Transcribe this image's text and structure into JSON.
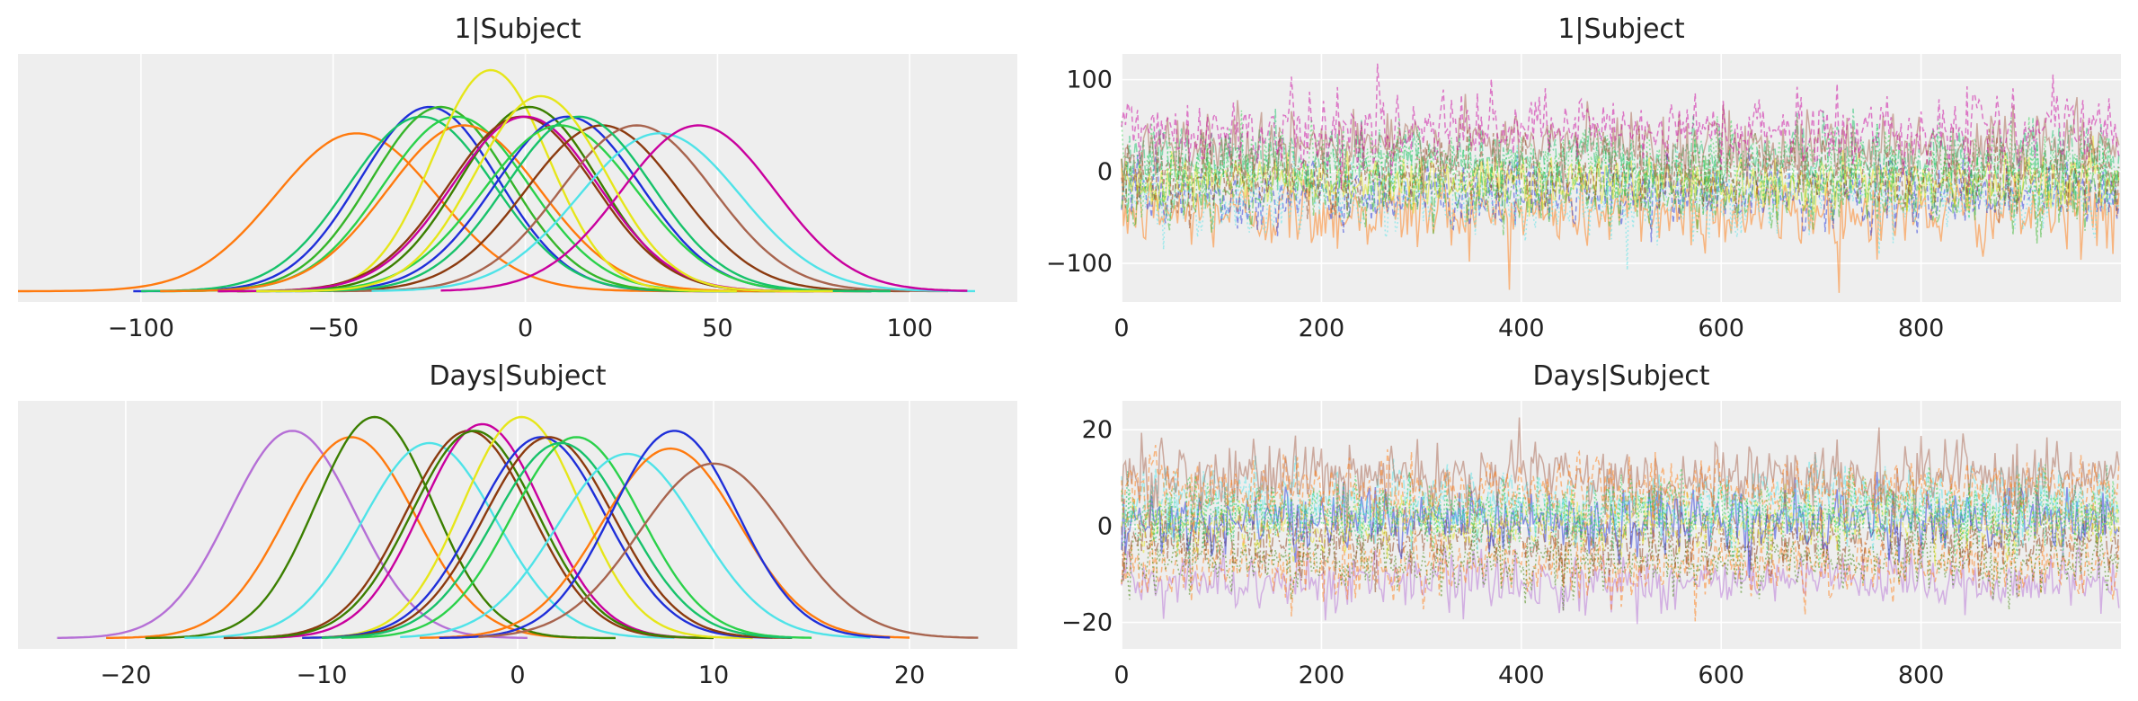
{
  "palette": [
    "#1f2fd9",
    "#ff7a0e",
    "#35b52a",
    "#8b3a0f",
    "#c9009e",
    "#a8644e",
    "#b56fd6",
    "#2bd14a",
    "#e6e61a",
    "#4fe3e8",
    "#17c26a",
    "#3b7f00"
  ],
  "chart_data": [
    {
      "type": "line",
      "subtype": "kde",
      "title": "1|Subject",
      "xlim": [
        -132,
        128
      ],
      "xticks": [
        -100,
        -50,
        0,
        50,
        100
      ],
      "xtick_labels": [
        "−100",
        "−50",
        "0",
        "50",
        "100"
      ],
      "yticks": [],
      "grid": true,
      "series": [
        {
          "color": "#ff7a0e",
          "mean": -44,
          "sd": 21,
          "lo": -132,
          "hi": 90
        },
        {
          "color": "#1f2fd9",
          "mean": -25,
          "sd": 18,
          "lo": -102,
          "hi": 55
        },
        {
          "color": "#17c26a",
          "mean": -27,
          "sd": 19,
          "lo": -100,
          "hi": 55
        },
        {
          "color": "#35b52a",
          "mean": -22,
          "sd": 18,
          "lo": -95,
          "hi": 55
        },
        {
          "color": "#2bd14a",
          "mean": -18,
          "sd": 19,
          "lo": -95,
          "hi": 65
        },
        {
          "color": "#ff7a0e",
          "mean": -16,
          "sd": 20,
          "lo": -95,
          "hi": 70
        },
        {
          "color": "#e6e61a",
          "mean": -9,
          "sd": 15,
          "lo": -75,
          "hi": 55
        },
        {
          "color": "#3b7f00",
          "mean": 1,
          "sd": 18,
          "lo": -75,
          "hi": 75
        },
        {
          "color": "#8b3a0f",
          "mean": -1,
          "sd": 19,
          "lo": -80,
          "hi": 75
        },
        {
          "color": "#c9009e",
          "mean": 0,
          "sd": 19,
          "lo": -80,
          "hi": 80
        },
        {
          "color": "#1f2fd9",
          "mean": 11,
          "sd": 19,
          "lo": -70,
          "hi": 90
        },
        {
          "color": "#2bd14a",
          "mean": 9,
          "sd": 20,
          "lo": -70,
          "hi": 90
        },
        {
          "color": "#8b3a0f",
          "mean": 20,
          "sd": 20,
          "lo": -60,
          "hi": 100
        },
        {
          "color": "#a8644e",
          "mean": 29,
          "sd": 20,
          "lo": -50,
          "hi": 110
        },
        {
          "color": "#4fe3e8",
          "mean": 35,
          "sd": 21,
          "lo": -40,
          "hi": 117
        },
        {
          "color": "#c9009e",
          "mean": 45,
          "sd": 20,
          "lo": -22,
          "hi": 115
        },
        {
          "color": "#17c26a",
          "mean": 14,
          "sd": 19,
          "lo": -65,
          "hi": 95
        },
        {
          "color": "#e6e61a",
          "mean": 4,
          "sd": 17,
          "lo": -70,
          "hi": 80
        }
      ]
    },
    {
      "type": "line",
      "subtype": "trace",
      "title": "1|Subject",
      "xlim": [
        0,
        1000
      ],
      "ylim": [
        -142,
        128
      ],
      "xticks": [
        0,
        200,
        400,
        600,
        800
      ],
      "xtick_labels": [
        "0",
        "200",
        "400",
        "600",
        "800"
      ],
      "yticks": [
        100,
        0,
        -100
      ],
      "ytick_labels": [
        "100",
        "0",
        "−100"
      ],
      "grid": true,
      "series": [
        {
          "color": "#ff7a0e",
          "mean": -44,
          "sd": 21
        },
        {
          "color": "#1f2fd9",
          "mean": -25,
          "sd": 18
        },
        {
          "color": "#4fe3e8",
          "mean": -30,
          "sd": 20
        },
        {
          "color": "#35b52a",
          "mean": -22,
          "sd": 18
        },
        {
          "color": "#e6e61a",
          "mean": -9,
          "sd": 15
        },
        {
          "color": "#8b3a0f",
          "mean": -1,
          "sd": 19
        },
        {
          "color": "#2bd14a",
          "mean": 9,
          "sd": 20
        },
        {
          "color": "#17c26a",
          "mean": 14,
          "sd": 19
        },
        {
          "color": "#a8644e",
          "mean": 29,
          "sd": 20
        },
        {
          "color": "#c9009e",
          "mean": 45,
          "sd": 20
        }
      ]
    },
    {
      "type": "line",
      "subtype": "kde",
      "title": "Days|Subject",
      "xlim": [
        -25.5,
        25.5
      ],
      "xticks": [
        -20,
        -10,
        0,
        10,
        20
      ],
      "xtick_labels": [
        "−20",
        "−10",
        "0",
        "10",
        "20"
      ],
      "yticks": [],
      "grid": true,
      "series": [
        {
          "color": "#b56fd6",
          "mean": -11.5,
          "sd": 3.2,
          "lo": -23.5,
          "hi": 0.5
        },
        {
          "color": "#ff7a0e",
          "mean": -8.5,
          "sd": 3.3,
          "lo": -21,
          "hi": 3
        },
        {
          "color": "#3b7f00",
          "mean": -7.3,
          "sd": 3.0,
          "lo": -19,
          "hi": 5
        },
        {
          "color": "#4fe3e8",
          "mean": -4.5,
          "sd": 3.4,
          "lo": -17,
          "hi": 8
        },
        {
          "color": "#8b3a0f",
          "mean": -2.5,
          "sd": 3.2,
          "lo": -15,
          "hi": 10
        },
        {
          "color": "#c9009e",
          "mean": -1.8,
          "sd": 3.1,
          "lo": -14,
          "hi": 10
        },
        {
          "color": "#3b7f00",
          "mean": -2.2,
          "sd": 3.2,
          "lo": -14,
          "hi": 10
        },
        {
          "color": "#e6e61a",
          "mean": 0.2,
          "sd": 3.0,
          "lo": -11,
          "hi": 12
        },
        {
          "color": "#1f2fd9",
          "mean": 1.2,
          "sd": 3.3,
          "lo": -11,
          "hi": 13
        },
        {
          "color": "#8b3a0f",
          "mean": 1.6,
          "sd": 3.3,
          "lo": -10,
          "hi": 14
        },
        {
          "color": "#2bd14a",
          "mean": 3.0,
          "sd": 3.3,
          "lo": -9,
          "hi": 15
        },
        {
          "color": "#17c26a",
          "mean": 2.2,
          "sd": 3.4,
          "lo": -10,
          "hi": 14
        },
        {
          "color": "#4fe3e8",
          "mean": 5.6,
          "sd": 3.6,
          "lo": -6,
          "hi": 18
        },
        {
          "color": "#ff7a0e",
          "mean": 7.8,
          "sd": 3.5,
          "lo": -5,
          "hi": 20
        },
        {
          "color": "#1f2fd9",
          "mean": 8.0,
          "sd": 3.2,
          "lo": -4,
          "hi": 19
        },
        {
          "color": "#a8644e",
          "mean": 10.0,
          "sd": 3.8,
          "lo": -2,
          "hi": 23.5
        }
      ]
    },
    {
      "type": "line",
      "subtype": "trace",
      "title": "Days|Subject",
      "xlim": [
        0,
        1000
      ],
      "ylim": [
        -25.5,
        26
      ],
      "xticks": [
        0,
        200,
        400,
        600,
        800
      ],
      "xtick_labels": [
        "0",
        "200",
        "400",
        "600",
        "800"
      ],
      "yticks": [
        20,
        0,
        -20
      ],
      "ytick_labels": [
        "20",
        "0",
        "−20"
      ],
      "grid": true,
      "series": [
        {
          "color": "#b56fd6",
          "mean": -11.5,
          "sd": 3.2
        },
        {
          "color": "#ff7a0e",
          "mean": -8.5,
          "sd": 3.3
        },
        {
          "color": "#3b7f00",
          "mean": -7.3,
          "sd": 3.0
        },
        {
          "color": "#8b3a0f",
          "mean": -2.5,
          "sd": 3.2
        },
        {
          "color": "#1f2fd9",
          "mean": 1.2,
          "sd": 3.3
        },
        {
          "color": "#e6e61a",
          "mean": 0.2,
          "sd": 3.0
        },
        {
          "color": "#17c26a",
          "mean": 2.2,
          "sd": 3.4
        },
        {
          "color": "#4fe3e8",
          "mean": 5.6,
          "sd": 3.6
        },
        {
          "color": "#a8644e",
          "mean": 10.0,
          "sd": 3.8
        },
        {
          "color": "#ff7a0e",
          "mean": 7.8,
          "sd": 3.5
        },
        {
          "color": "#2bd14a",
          "mean": 3.0,
          "sd": 3.3
        }
      ]
    }
  ]
}
